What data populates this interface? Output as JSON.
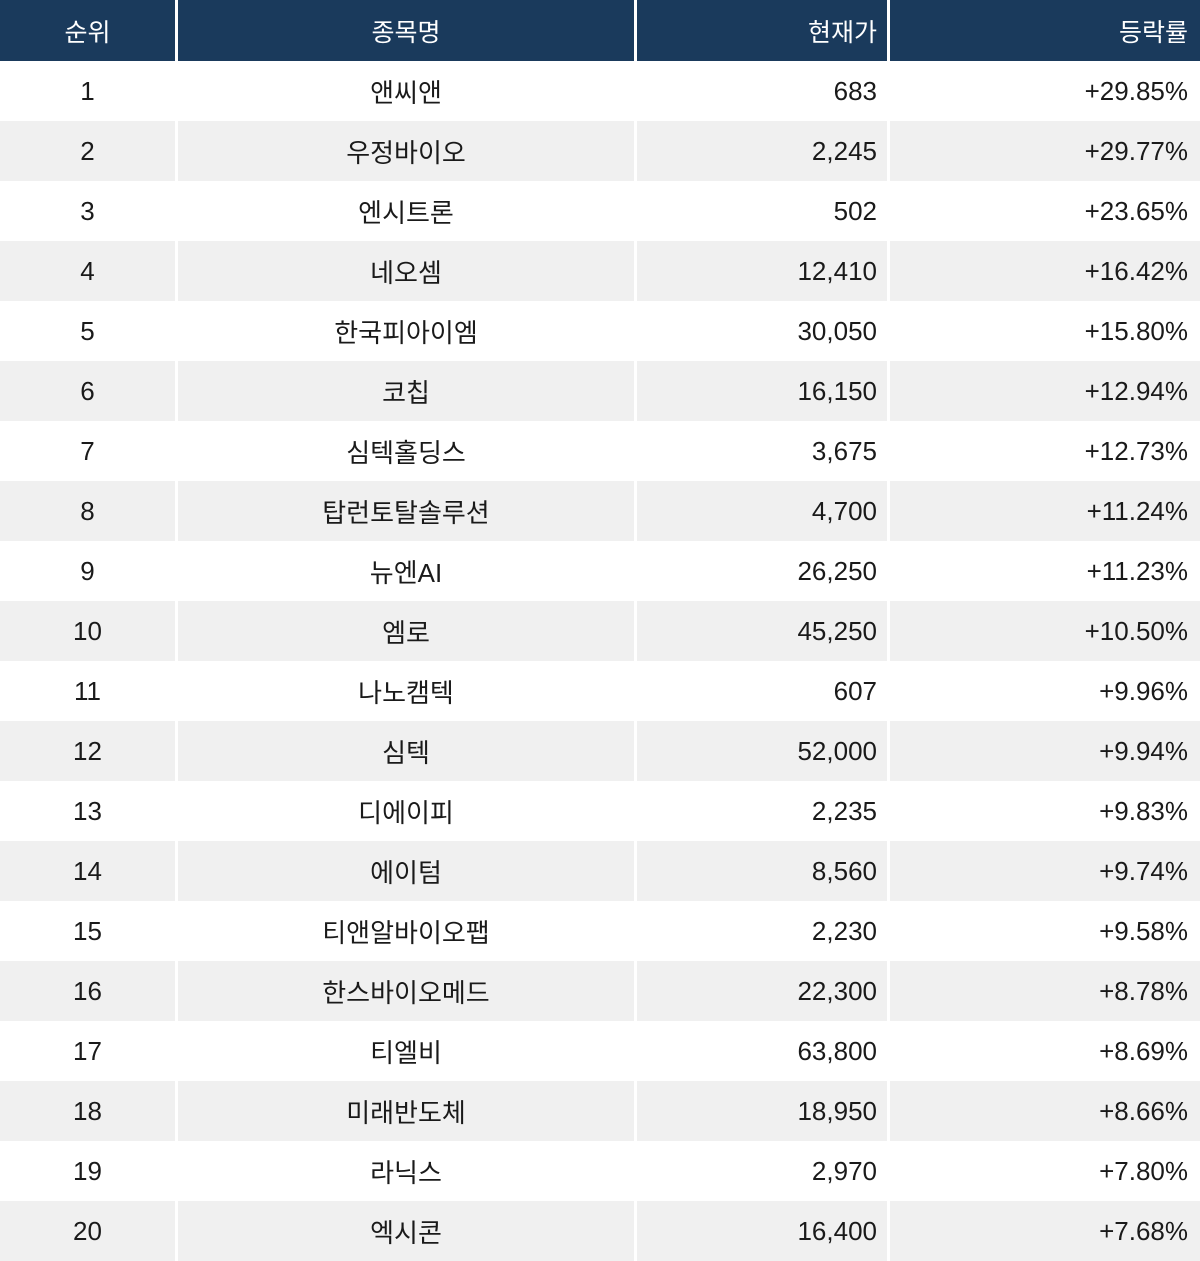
{
  "colors": {
    "header-bg": "#1a3a5c",
    "header-text": "#ffffff",
    "row-bg": "#ffffff",
    "row-alt-bg": "#f0f0f0",
    "body-text": "#1a1a1a",
    "divider": "#ffffff"
  },
  "chart_data": {
    "type": "table",
    "legend_position": "none",
    "grid": "zebra-stripes",
    "columns": [
      {
        "key": "rank",
        "label": "순위"
      },
      {
        "key": "name",
        "label": "종목명"
      },
      {
        "key": "price",
        "label": "현재가"
      },
      {
        "key": "change",
        "label": "등락률"
      }
    ],
    "rows": [
      {
        "rank": "1",
        "name": "앤씨앤",
        "price": "683",
        "change": "+29.85%"
      },
      {
        "rank": "2",
        "name": "우정바이오",
        "price": "2,245",
        "change": "+29.77%"
      },
      {
        "rank": "3",
        "name": "엔시트론",
        "price": "502",
        "change": "+23.65%"
      },
      {
        "rank": "4",
        "name": "네오셈",
        "price": "12,410",
        "change": "+16.42%"
      },
      {
        "rank": "5",
        "name": "한국피아이엠",
        "price": "30,050",
        "change": "+15.80%"
      },
      {
        "rank": "6",
        "name": "코칩",
        "price": "16,150",
        "change": "+12.94%"
      },
      {
        "rank": "7",
        "name": "심텍홀딩스",
        "price": "3,675",
        "change": "+12.73%"
      },
      {
        "rank": "8",
        "name": "탑런토탈솔루션",
        "price": "4,700",
        "change": "+11.24%"
      },
      {
        "rank": "9",
        "name": "뉴엔AI",
        "price": "26,250",
        "change": "+11.23%"
      },
      {
        "rank": "10",
        "name": "엠로",
        "price": "45,250",
        "change": "+10.50%"
      },
      {
        "rank": "11",
        "name": "나노캠텍",
        "price": "607",
        "change": "+9.96%"
      },
      {
        "rank": "12",
        "name": "심텍",
        "price": "52,000",
        "change": "+9.94%"
      },
      {
        "rank": "13",
        "name": "디에이피",
        "price": "2,235",
        "change": "+9.83%"
      },
      {
        "rank": "14",
        "name": "에이텀",
        "price": "8,560",
        "change": "+9.74%"
      },
      {
        "rank": "15",
        "name": "티앤알바이오팹",
        "price": "2,230",
        "change": "+9.58%"
      },
      {
        "rank": "16",
        "name": "한스바이오메드",
        "price": "22,300",
        "change": "+8.78%"
      },
      {
        "rank": "17",
        "name": "티엘비",
        "price": "63,800",
        "change": "+8.69%"
      },
      {
        "rank": "18",
        "name": "미래반도체",
        "price": "18,950",
        "change": "+8.66%"
      },
      {
        "rank": "19",
        "name": "라닉스",
        "price": "2,970",
        "change": "+7.80%"
      },
      {
        "rank": "20",
        "name": "엑시콘",
        "price": "16,400",
        "change": "+7.68%"
      }
    ]
  }
}
